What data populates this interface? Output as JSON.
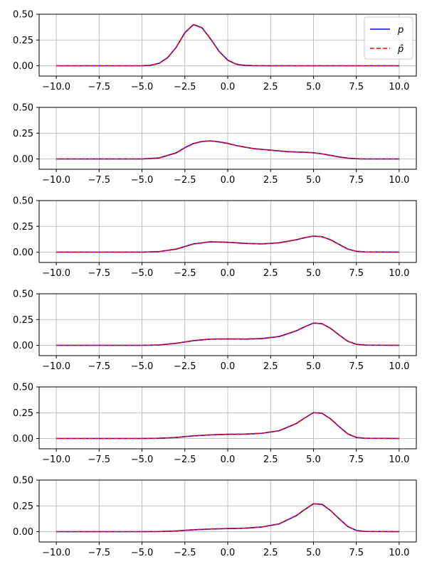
{
  "chart_data": [
    {
      "type": "line",
      "panel": 1,
      "x": [
        -10,
        -7.5,
        -5,
        -4.5,
        -4,
        -3.5,
        -3,
        -2.5,
        -2,
        -1.5,
        -1,
        -0.5,
        0,
        0.5,
        1,
        1.5,
        2.5,
        5,
        7.5,
        10
      ],
      "series": [
        {
          "name": "p",
          "values": [
            0,
            0,
            0,
            0.005,
            0.025,
            0.08,
            0.18,
            0.32,
            0.4,
            0.37,
            0.26,
            0.14,
            0.055,
            0.015,
            0.004,
            0.001,
            0,
            0,
            0,
            0
          ]
        },
        {
          "name": "p̂",
          "values": [
            0,
            0,
            0,
            0.004,
            0.023,
            0.078,
            0.182,
            0.322,
            0.398,
            0.368,
            0.262,
            0.138,
            0.053,
            0.014,
            0.004,
            0.001,
            0,
            0,
            0,
            0
          ]
        }
      ],
      "xlim": [
        -11,
        11
      ],
      "ylim": [
        -0.1,
        0.5
      ],
      "xticks": [
        -10,
        -7.5,
        -5,
        -2.5,
        0,
        2.5,
        5,
        7.5,
        10
      ],
      "yticks": [
        0,
        0.25,
        0.5
      ],
      "grid": true,
      "legend": "top-right"
    },
    {
      "type": "line",
      "panel": 2,
      "x": [
        -10,
        -7.5,
        -5,
        -4,
        -3,
        -2.5,
        -2,
        -1.5,
        -1,
        -0.5,
        0,
        0.5,
        1,
        1.5,
        2.5,
        3.5,
        4.5,
        5,
        5.5,
        6,
        6.5,
        7,
        7.5,
        8,
        10
      ],
      "series": [
        {
          "name": "p",
          "values": [
            0,
            0,
            0,
            0.01,
            0.06,
            0.11,
            0.15,
            0.17,
            0.175,
            0.165,
            0.15,
            0.13,
            0.115,
            0.1,
            0.085,
            0.07,
            0.065,
            0.06,
            0.05,
            0.035,
            0.02,
            0.008,
            0.002,
            0,
            0
          ]
        },
        {
          "name": "p̂",
          "values": [
            0,
            0,
            0,
            0.01,
            0.058,
            0.108,
            0.148,
            0.168,
            0.176,
            0.166,
            0.152,
            0.131,
            0.114,
            0.101,
            0.086,
            0.071,
            0.064,
            0.059,
            0.049,
            0.034,
            0.019,
            0.008,
            0.002,
            0,
            0
          ]
        }
      ],
      "xlim": [
        -11,
        11
      ],
      "ylim": [
        -0.1,
        0.5
      ],
      "xticks": [
        -10,
        -7.5,
        -5,
        -2.5,
        0,
        2.5,
        5,
        7.5,
        10
      ],
      "yticks": [
        0,
        0.25,
        0.5
      ],
      "grid": true
    },
    {
      "type": "line",
      "panel": 3,
      "x": [
        -10,
        -7.5,
        -5,
        -4,
        -3,
        -2,
        -1,
        0,
        1,
        2,
        3,
        4,
        4.5,
        5,
        5.5,
        6,
        6.5,
        7,
        7.5,
        8,
        10
      ],
      "series": [
        {
          "name": "p",
          "values": [
            0,
            0,
            0,
            0.005,
            0.03,
            0.08,
            0.1,
            0.095,
            0.085,
            0.08,
            0.09,
            0.12,
            0.14,
            0.155,
            0.15,
            0.12,
            0.075,
            0.03,
            0.008,
            0.002,
            0
          ]
        },
        {
          "name": "p̂",
          "values": [
            0,
            0,
            0,
            0.005,
            0.029,
            0.079,
            0.101,
            0.096,
            0.085,
            0.081,
            0.091,
            0.121,
            0.141,
            0.156,
            0.149,
            0.119,
            0.074,
            0.029,
            0.008,
            0.002,
            0
          ]
        }
      ],
      "xlim": [
        -11,
        11
      ],
      "ylim": [
        -0.1,
        0.5
      ],
      "xticks": [
        -10,
        -7.5,
        -5,
        -2.5,
        0,
        2.5,
        5,
        7.5,
        10
      ],
      "yticks": [
        0,
        0.25,
        0.5
      ],
      "grid": true
    },
    {
      "type": "line",
      "panel": 4,
      "x": [
        -10,
        -7.5,
        -5,
        -4,
        -3,
        -2,
        -1,
        0,
        1,
        2,
        3,
        4,
        4.5,
        5,
        5.5,
        6,
        6.5,
        7,
        7.5,
        8,
        10
      ],
      "series": [
        {
          "name": "p",
          "values": [
            0,
            0,
            0,
            0.003,
            0.02,
            0.045,
            0.06,
            0.062,
            0.06,
            0.065,
            0.085,
            0.14,
            0.18,
            0.215,
            0.21,
            0.165,
            0.1,
            0.04,
            0.01,
            0.002,
            0
          ]
        },
        {
          "name": "p̂",
          "values": [
            0,
            0,
            0,
            0.003,
            0.019,
            0.046,
            0.061,
            0.062,
            0.061,
            0.066,
            0.086,
            0.141,
            0.181,
            0.216,
            0.209,
            0.164,
            0.099,
            0.039,
            0.01,
            0.002,
            0
          ]
        }
      ],
      "xlim": [
        -11,
        11
      ],
      "ylim": [
        -0.1,
        0.5
      ],
      "xticks": [
        -10,
        -7.5,
        -5,
        -2.5,
        0,
        2.5,
        5,
        7.5,
        10
      ],
      "yticks": [
        0,
        0.25,
        0.5
      ],
      "grid": true
    },
    {
      "type": "line",
      "panel": 5,
      "x": [
        -10,
        -7.5,
        -5,
        -4,
        -3,
        -2,
        -1,
        0,
        1,
        2,
        3,
        4,
        4.5,
        5,
        5.5,
        6,
        6.5,
        7,
        7.5,
        8,
        10
      ],
      "series": [
        {
          "name": "p",
          "values": [
            0,
            0,
            0,
            0.002,
            0.01,
            0.025,
            0.035,
            0.04,
            0.042,
            0.05,
            0.075,
            0.145,
            0.2,
            0.25,
            0.245,
            0.19,
            0.115,
            0.045,
            0.01,
            0.002,
            0
          ]
        },
        {
          "name": "p̂",
          "values": [
            0,
            0,
            0,
            0.002,
            0.01,
            0.026,
            0.036,
            0.041,
            0.043,
            0.051,
            0.076,
            0.146,
            0.201,
            0.251,
            0.244,
            0.189,
            0.114,
            0.044,
            0.01,
            0.002,
            0
          ]
        }
      ],
      "xlim": [
        -11,
        11
      ],
      "ylim": [
        -0.1,
        0.5
      ],
      "xticks": [
        -10,
        -7.5,
        -5,
        -2.5,
        0,
        2.5,
        5,
        7.5,
        10
      ],
      "yticks": [
        0,
        0.25,
        0.5
      ],
      "grid": true
    },
    {
      "type": "line",
      "panel": 6,
      "x": [
        -10,
        -7.5,
        -5,
        -4,
        -3,
        -2,
        -1,
        0,
        1,
        2,
        3,
        4,
        4.5,
        5,
        5.5,
        6,
        6.5,
        7,
        7.5,
        8,
        10
      ],
      "series": [
        {
          "name": "p",
          "values": [
            0,
            0,
            0,
            0.001,
            0.007,
            0.018,
            0.025,
            0.03,
            0.033,
            0.045,
            0.075,
            0.155,
            0.215,
            0.27,
            0.265,
            0.205,
            0.125,
            0.05,
            0.012,
            0.002,
            0
          ]
        },
        {
          "name": "p̂",
          "values": [
            0,
            0,
            0,
            0.001,
            0.007,
            0.019,
            0.026,
            0.031,
            0.034,
            0.046,
            0.076,
            0.156,
            0.216,
            0.271,
            0.264,
            0.204,
            0.124,
            0.049,
            0.012,
            0.002,
            0
          ]
        }
      ],
      "xlim": [
        -11,
        11
      ],
      "ylim": [
        -0.1,
        0.5
      ],
      "xticks": [
        -10,
        -7.5,
        -5,
        -2.5,
        0,
        2.5,
        5,
        7.5,
        10
      ],
      "yticks": [
        0,
        0.25,
        0.5
      ],
      "grid": true
    }
  ],
  "legend": {
    "entries": [
      {
        "label": "p",
        "color": "#0000ff",
        "style": "solid"
      },
      {
        "label": "p̂",
        "color": "#ff0000",
        "style": "dashed"
      }
    ]
  },
  "colors": {
    "true_series": "#0000ff",
    "estimate_series": "#ff0000",
    "grid": "#b0b0b0"
  }
}
